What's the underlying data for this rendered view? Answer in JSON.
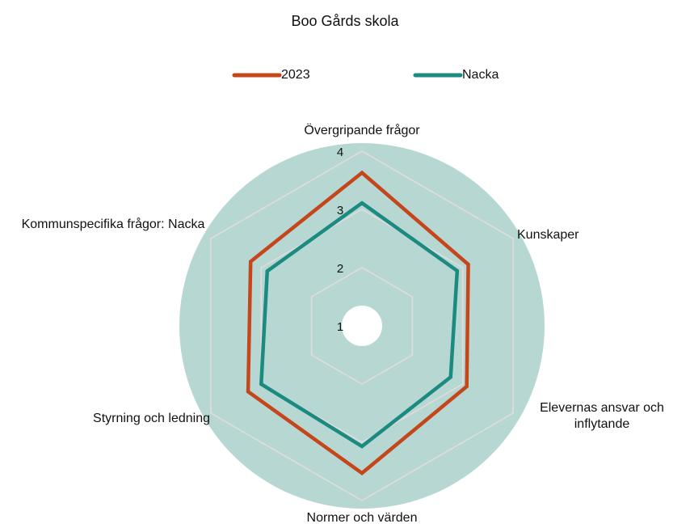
{
  "chart_data": {
    "type": "radar",
    "title": "Boo Gårds skola",
    "categories": [
      "Övergripande frågor",
      "Kunskaper",
      "Elevernas ansvar och inflytande",
      "Normer och värden",
      "Styrning och ledning",
      "Kommunspecifika frågor: Nacka"
    ],
    "series": [
      {
        "name": "2023",
        "color": "#c5461a",
        "values": [
          3.63,
          3.11,
          3.08,
          3.53,
          3.26,
          3.21
        ]
      },
      {
        "name": "Nacka",
        "color": "#1b8a80",
        "values": [
          3.11,
          2.89,
          2.76,
          3.07,
          3.0,
          2.88
        ]
      }
    ],
    "rlim": [
      1,
      4
    ],
    "rticks": [
      1,
      2,
      3,
      4
    ],
    "grid": true,
    "legend": "top"
  }
}
